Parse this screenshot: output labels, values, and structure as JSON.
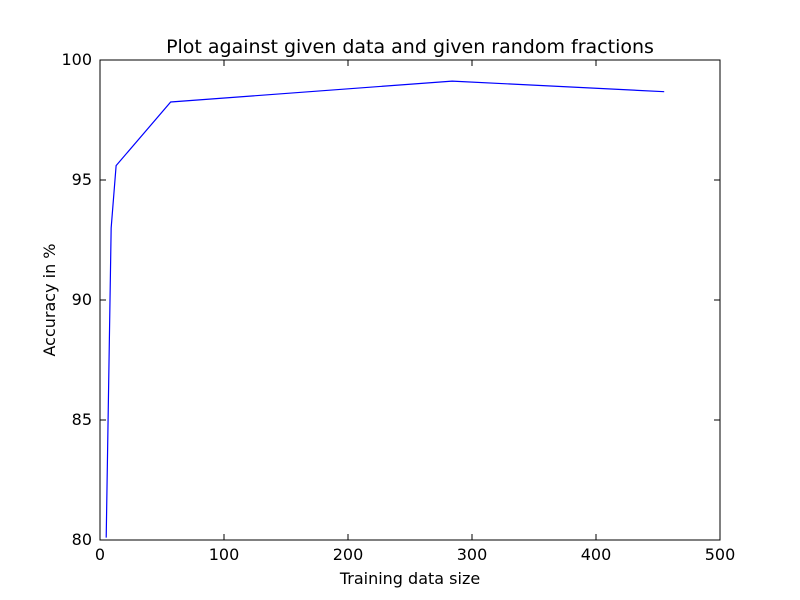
{
  "chart_data": {
    "type": "line",
    "title": "Plot against given data and given random fractions",
    "xlabel": "Training data size",
    "ylabel": "Accuracy in %",
    "xlim": [
      0,
      500
    ],
    "ylim": [
      80,
      100
    ],
    "xticks": [
      0,
      100,
      200,
      300,
      400,
      500
    ],
    "yticks": [
      80,
      85,
      90,
      95,
      100
    ],
    "grid": false,
    "series": [
      {
        "color": "#0000ff",
        "x": [
          5,
          9,
          13,
          57,
          284,
          455
        ],
        "y": [
          80.1,
          93.0,
          95.6,
          98.25,
          99.12,
          98.68
        ]
      }
    ]
  }
}
